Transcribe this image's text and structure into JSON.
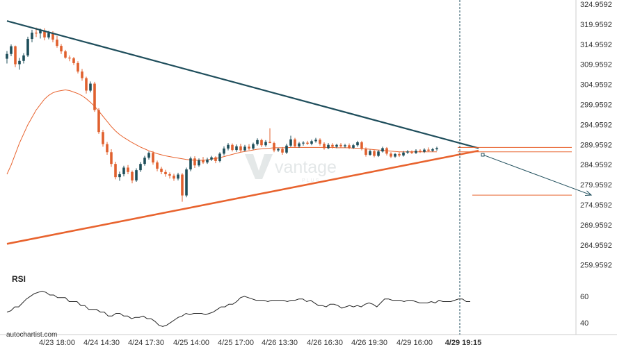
{
  "brand": {
    "watermark": "autochartist.com",
    "logo_text": "vantage",
    "logo_subtext": "PLUS"
  },
  "colors": {
    "bull": "#1d4e5a",
    "bear": "#e0602e",
    "resistance": "#1f4e5c",
    "support": "#e8632e",
    "moving_average": "#e8632e",
    "forecast": "#1f4e5c",
    "target": "#e8632e",
    "rsi": "#222222",
    "marker": "#1f4e5c",
    "axis_text": "#333333",
    "axis_line": "#cccccc"
  },
  "chart_data": [
    {
      "type": "candlestick",
      "y_tick_labels": [
        "324.9592",
        "319.9592",
        "314.9592",
        "309.9592",
        "304.9592",
        "299.9592",
        "294.9592",
        "289.9592",
        "284.9592",
        "279.9592",
        "274.9592",
        "269.9592",
        "264.9592",
        "259.9592"
      ],
      "x_tick_labels": [
        "4/23 18:00",
        "4/24 14:30",
        "4/24 17:30",
        "4/25 14:00",
        "4/25 17:00",
        "4/26 13:30",
        "4/26 16:30",
        "4/26 19:30",
        "4/29 16:00",
        "4/29 19:15"
      ],
      "highlighted_x_label": "4/29 19:15",
      "ylim": [
        256.0,
        327.0
      ],
      "candles_ohlc": [
        [
          312.5,
          314.6,
          311.2,
          313.8
        ],
        [
          313.8,
          316.4,
          313.2,
          315.9
        ],
        [
          315.9,
          316.1,
          310.2,
          311.0
        ],
        [
          311.0,
          312.7,
          309.5,
          311.9
        ],
        [
          311.9,
          314.0,
          311.2,
          313.4
        ],
        [
          313.4,
          318.5,
          313.0,
          317.9
        ],
        [
          317.9,
          320.4,
          317.0,
          319.6
        ],
        [
          319.6,
          321.0,
          318.4,
          319.4
        ],
        [
          319.4,
          320.7,
          318.0,
          320.2
        ],
        [
          320.2,
          320.8,
          317.5,
          318.3
        ],
        [
          318.3,
          320.1,
          317.8,
          319.5
        ],
        [
          319.5,
          320.0,
          317.0,
          317.7
        ],
        [
          317.7,
          318.7,
          315.5,
          316.0
        ],
        [
          316.0,
          316.5,
          313.8,
          314.5
        ],
        [
          314.5,
          314.9,
          312.5,
          312.8
        ],
        [
          312.8,
          313.4,
          311.8,
          312.6
        ],
        [
          312.6,
          313.0,
          310.8,
          311.3
        ],
        [
          311.3,
          311.8,
          308.5,
          309.0
        ],
        [
          309.0,
          309.7,
          306.5,
          307.2
        ],
        [
          307.2,
          307.6,
          303.0,
          303.8
        ],
        [
          303.8,
          306.3,
          303.3,
          305.7
        ],
        [
          305.7,
          306.2,
          298.0,
          298.5
        ],
        [
          298.5,
          299.0,
          292.0,
          292.5
        ],
        [
          292.5,
          293.1,
          288.5,
          289.2
        ],
        [
          289.2,
          289.8,
          286.3,
          287.0
        ],
        [
          287.0,
          287.8,
          283.0,
          283.8
        ],
        [
          283.8,
          284.4,
          279.6,
          280.2
        ],
        [
          280.2,
          281.7,
          279.2,
          281.0
        ],
        [
          281.0,
          283.3,
          280.4,
          282.8
        ],
        [
          282.8,
          283.5,
          281.0,
          281.6
        ],
        [
          281.6,
          282.0,
          278.5,
          279.3
        ],
        [
          279.3,
          282.6,
          278.9,
          282.1
        ],
        [
          282.1,
          284.3,
          281.6,
          283.8
        ],
        [
          283.8,
          286.0,
          283.3,
          285.5
        ],
        [
          285.5,
          287.2,
          285.0,
          286.8
        ],
        [
          286.8,
          287.3,
          283.6,
          284.2
        ],
        [
          284.2,
          284.7,
          281.8,
          282.5
        ],
        [
          282.5,
          283.0,
          281.0,
          281.6
        ],
        [
          281.6,
          282.2,
          280.3,
          281.0
        ],
        [
          281.0,
          281.5,
          279.8,
          280.6
        ],
        [
          280.6,
          281.1,
          279.2,
          279.8
        ],
        [
          279.8,
          281.4,
          279.3,
          280.9
        ],
        [
          280.9,
          281.3,
          273.5,
          275.2
        ],
        [
          275.2,
          282.8,
          274.7,
          282.3
        ],
        [
          282.3,
          285.8,
          281.8,
          285.3
        ],
        [
          285.3,
          285.9,
          282.7,
          283.4
        ],
        [
          283.4,
          285.3,
          283.0,
          284.8
        ],
        [
          284.8,
          285.7,
          283.8,
          284.2
        ],
        [
          284.2,
          285.5,
          283.8,
          285.0
        ],
        [
          285.0,
          286.0,
          284.6,
          285.6
        ],
        [
          285.6,
          285.9,
          284.0,
          284.6
        ],
        [
          284.6,
          287.0,
          284.2,
          286.6
        ],
        [
          286.6,
          288.6,
          286.1,
          288.0
        ],
        [
          288.0,
          289.5,
          287.5,
          289.0
        ],
        [
          289.0,
          289.4,
          287.2,
          287.6
        ],
        [
          287.6,
          289.1,
          287.1,
          288.6
        ],
        [
          288.6,
          289.3,
          287.0,
          287.5
        ],
        [
          287.5,
          289.0,
          287.2,
          288.5
        ],
        [
          288.5,
          289.2,
          287.6,
          288.0
        ],
        [
          288.0,
          289.6,
          287.7,
          289.2
        ],
        [
          289.2,
          290.8,
          288.8,
          290.3
        ],
        [
          290.3,
          290.7,
          288.4,
          288.9
        ],
        [
          288.9,
          290.3,
          288.5,
          289.8
        ],
        [
          289.8,
          293.5,
          289.5,
          289.5
        ],
        [
          289.5,
          289.9,
          287.0,
          287.5
        ],
        [
          287.5,
          288.2,
          287.1,
          287.9
        ],
        [
          287.9,
          288.4,
          286.3,
          286.9
        ],
        [
          286.9,
          289.3,
          286.5,
          288.8
        ],
        [
          288.8,
          291.5,
          288.4,
          290.5
        ],
        [
          290.5,
          290.9,
          288.2,
          288.6
        ],
        [
          288.6,
          289.8,
          288.2,
          289.4
        ],
        [
          289.4,
          290.0,
          288.8,
          289.6
        ],
        [
          289.6,
          290.1,
          289.0,
          289.3
        ],
        [
          289.3,
          290.4,
          288.9,
          290.0
        ],
        [
          290.0,
          290.9,
          289.6,
          290.4
        ],
        [
          290.4,
          290.8,
          288.8,
          289.3
        ],
        [
          289.3,
          289.7,
          287.7,
          288.1
        ],
        [
          288.1,
          289.5,
          287.8,
          289.0
        ],
        [
          289.0,
          289.5,
          288.0,
          288.5
        ],
        [
          288.5,
          289.3,
          288.1,
          289.0
        ],
        [
          289.0,
          289.5,
          288.2,
          288.6
        ],
        [
          288.6,
          289.3,
          288.2,
          288.9
        ],
        [
          288.9,
          289.4,
          287.8,
          288.2
        ],
        [
          288.2,
          289.3,
          287.9,
          288.9
        ],
        [
          288.9,
          290.1,
          288.5,
          289.7
        ],
        [
          289.7,
          290.1,
          287.5,
          287.9
        ],
        [
          287.9,
          288.3,
          285.8,
          286.3
        ],
        [
          286.3,
          287.7,
          286.0,
          287.3
        ],
        [
          287.3,
          287.7,
          285.6,
          286.0
        ],
        [
          286.0,
          287.6,
          285.7,
          287.2
        ],
        [
          287.2,
          288.5,
          286.9,
          288.1
        ],
        [
          288.1,
          288.4,
          286.1,
          286.6
        ],
        [
          286.6,
          287.0,
          285.4,
          285.8
        ],
        [
          285.8,
          286.8,
          285.5,
          286.5
        ],
        [
          286.5,
          287.0,
          285.7,
          286.1
        ],
        [
          286.1,
          287.3,
          285.8,
          286.9
        ],
        [
          286.9,
          287.6,
          286.5,
          287.2
        ],
        [
          287.2,
          287.5,
          286.5,
          286.8
        ],
        [
          286.8,
          287.8,
          286.5,
          287.4
        ],
        [
          287.4,
          287.8,
          286.8,
          287.1
        ],
        [
          287.1,
          288.1,
          286.8,
          287.7
        ],
        [
          287.7,
          288.3,
          287.2,
          287.4
        ],
        [
          287.4,
          288.2,
          287.1,
          287.8
        ],
        [
          287.8,
          288.5,
          287.4,
          288.1
        ]
      ],
      "moving_average_values": [
        281.0,
        283.5,
        286.5,
        289.5,
        292.0,
        294.5,
        296.5,
        298.5,
        300.0,
        301.5,
        302.5,
        303.2,
        303.6,
        303.8,
        304.0,
        303.8,
        303.4,
        303.0,
        302.4,
        301.6,
        300.6,
        299.5,
        298.2,
        296.8,
        295.4,
        294.0,
        292.8,
        291.8,
        291.0,
        290.3,
        289.6,
        289.0,
        288.4,
        287.9,
        287.4,
        287.0,
        286.6,
        286.3,
        286.0,
        285.8,
        285.6,
        285.4,
        285.2,
        285.0,
        284.9,
        284.8,
        284.8,
        284.8,
        284.9,
        285.1,
        285.3,
        285.5,
        285.8,
        286.1,
        286.4,
        286.7,
        287.0,
        287.2,
        287.4,
        287.6,
        287.8,
        287.9,
        288.0,
        288.1,
        288.2,
        288.2,
        288.2,
        288.2,
        288.3,
        288.3,
        288.3,
        288.3,
        288.3,
        288.3,
        288.3,
        288.3,
        288.3,
        288.3,
        288.3,
        288.2,
        288.2,
        288.2,
        288.2,
        288.1,
        288.1,
        288.0,
        287.9,
        287.8,
        287.7,
        287.6,
        287.5,
        287.4,
        287.3,
        287.2,
        287.1,
        287.1,
        287.1,
        287.1,
        287.1,
        287.1,
        287.1,
        287.1,
        287.1,
        287.1
      ],
      "resistance_line": {
        "start": [
          0,
          322.8
        ],
        "end": [
          113,
          288.1
        ]
      },
      "support_line": {
        "start": [
          0,
          262.0
        ],
        "end": [
          113,
          287.4
        ]
      },
      "pattern_levels": [
        288.3,
        287.1
      ],
      "forecast_arrow": {
        "start": [
          114,
          286.3
        ],
        "end": [
          140,
          275.3
        ]
      },
      "target_level": 275.3
    },
    {
      "type": "line",
      "title": "RSI",
      "y_tick_labels": [
        "60",
        "40"
      ],
      "ylim": [
        33,
        70
      ],
      "values": [
        48,
        49,
        52,
        52,
        55,
        58,
        60,
        62,
        63,
        64,
        63,
        61,
        61,
        59,
        59,
        59,
        56,
        56,
        56,
        53,
        53,
        50,
        50,
        50,
        48,
        48,
        45,
        45,
        47,
        47,
        45,
        45,
        43,
        44,
        44,
        45,
        43,
        43,
        41,
        38,
        37,
        38,
        40,
        42,
        44,
        45,
        47,
        46,
        47,
        47,
        47,
        46,
        47,
        48,
        50,
        52,
        52,
        54,
        54,
        56,
        59,
        60,
        59,
        58,
        57,
        57,
        57,
        56,
        57,
        57,
        57,
        57,
        56,
        57,
        57,
        58,
        58,
        56,
        57,
        55,
        53,
        53,
        52,
        54,
        54,
        53,
        51,
        52,
        53,
        52,
        53,
        52,
        54,
        55,
        54,
        52,
        55,
        58,
        58,
        57,
        57,
        57,
        56,
        57,
        57,
        56,
        55,
        55,
        55,
        56,
        55,
        57,
        56,
        56,
        56,
        57,
        58,
        58,
        56,
        56
      ]
    }
  ]
}
